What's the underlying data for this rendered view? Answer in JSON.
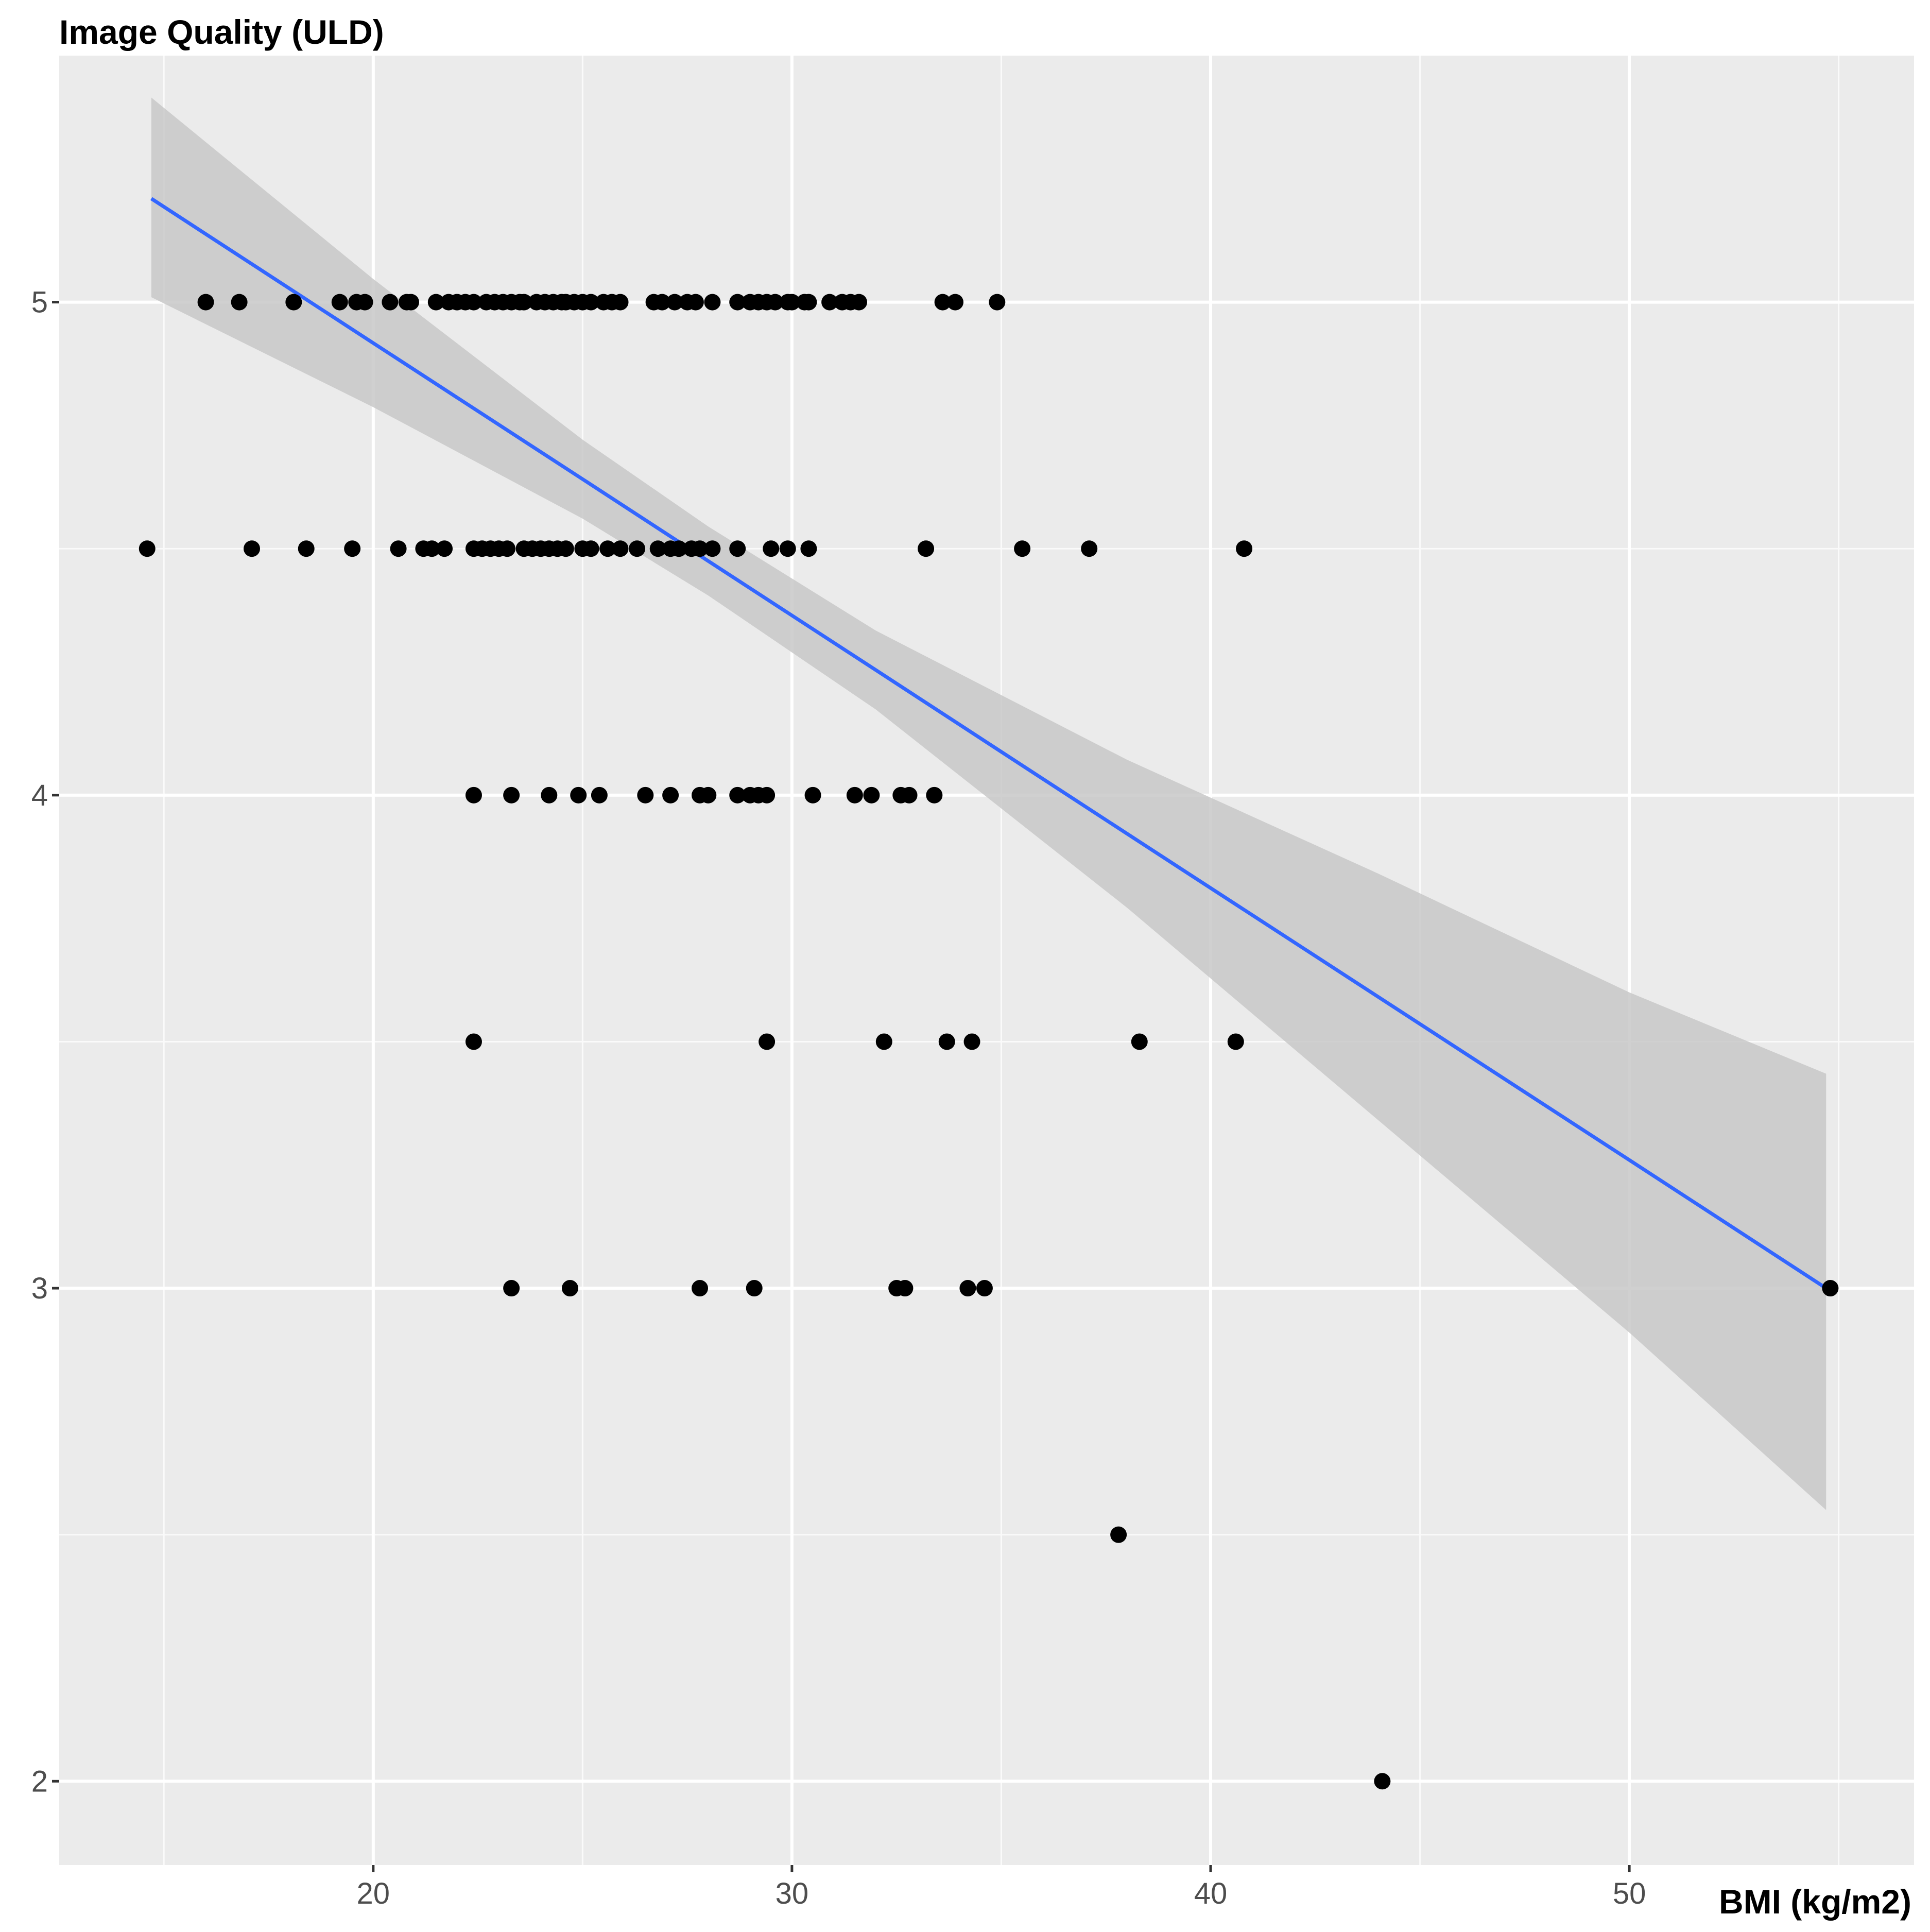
{
  "chart_data": {
    "type": "scatter",
    "y_label": "Image Quality (ULD)",
    "x_label": "BMI (kg/m2)",
    "xlim": [
      12.5,
      56.8
    ],
    "ylim": [
      1.83,
      5.5
    ],
    "xticks": [
      20,
      30,
      40,
      50
    ],
    "yticks": [
      2,
      3,
      4,
      5
    ],
    "xminor": [
      15,
      25,
      35,
      45,
      55
    ],
    "yminor": [
      2.5,
      3.5,
      4.5
    ],
    "grid": true,
    "background": "#ebebeb",
    "series": [
      {
        "color": "#000000",
        "x": [
          16.0,
          16.8,
          18.1,
          19.2,
          19.6,
          19.8,
          20.4,
          20.8,
          20.9,
          21.5,
          21.8,
          22.0,
          22.2,
          22.4,
          22.7,
          22.9,
          23.1,
          23.3,
          23.5,
          23.6,
          23.9,
          24.1,
          24.3,
          24.5,
          24.6,
          24.8,
          25.0,
          25.2,
          25.5,
          25.7,
          25.9,
          26.7,
          26.9,
          27.2,
          27.5,
          27.7,
          28.1,
          28.7,
          29.0,
          29.2,
          29.4,
          29.6,
          29.9,
          30.0,
          30.3,
          30.4,
          30.9,
          31.2,
          31.4,
          31.6,
          33.6,
          33.9,
          34.9,
          14.6,
          17.1,
          18.4,
          19.5,
          20.6,
          21.2,
          21.4,
          21.7,
          22.4,
          22.6,
          22.8,
          23.0,
          23.2,
          23.6,
          23.8,
          24.0,
          24.2,
          24.4,
          24.6,
          25.0,
          25.2,
          25.6,
          25.9,
          26.3,
          26.8,
          27.1,
          27.3,
          27.6,
          27.8,
          28.1,
          28.7,
          29.5,
          29.9,
          30.4,
          33.2,
          35.5,
          37.1,
          40.8,
          22.4,
          23.3,
          24.2,
          24.9,
          25.4,
          26.5,
          27.1,
          27.8,
          28.0,
          28.7,
          29.0,
          29.2,
          29.4,
          30.5,
          31.5,
          31.9,
          32.6,
          32.8,
          33.4,
          22.4,
          29.4,
          32.2,
          33.7,
          34.3,
          38.3,
          40.6,
          23.3,
          24.7,
          27.8,
          29.1,
          32.5,
          32.7,
          34.2,
          34.6,
          54.8,
          37.8,
          44.1
        ],
        "values": [
          5,
          5,
          5,
          5,
          5,
          5,
          5,
          5,
          5,
          5,
          5,
          5,
          5,
          5,
          5,
          5,
          5,
          5,
          5,
          5,
          5,
          5,
          5,
          5,
          5,
          5,
          5,
          5,
          5,
          5,
          5,
          5,
          5,
          5,
          5,
          5,
          5,
          5,
          5,
          5,
          5,
          5,
          5,
          5,
          5,
          5,
          5,
          5,
          5,
          5,
          5,
          5,
          5,
          4.5,
          4.5,
          4.5,
          4.5,
          4.5,
          4.5,
          4.5,
          4.5,
          4.5,
          4.5,
          4.5,
          4.5,
          4.5,
          4.5,
          4.5,
          4.5,
          4.5,
          4.5,
          4.5,
          4.5,
          4.5,
          4.5,
          4.5,
          4.5,
          4.5,
          4.5,
          4.5,
          4.5,
          4.5,
          4.5,
          4.5,
          4.5,
          4.5,
          4.5,
          4.5,
          4.5,
          4.5,
          4.5,
          4,
          4,
          4,
          4,
          4,
          4,
          4,
          4,
          4,
          4,
          4,
          4,
          4,
          4,
          4,
          4,
          4,
          4,
          4,
          3.5,
          3.5,
          3.5,
          3.5,
          3.5,
          3.5,
          3.5,
          3,
          3,
          3,
          3,
          3,
          3,
          3,
          3,
          3,
          2.5,
          2
        ]
      }
    ],
    "fit": {
      "color": "#3366ff",
      "band_color": "#c8c8c8",
      "x": [
        14.7,
        20,
        25,
        28,
        32,
        38,
        44,
        50,
        54.7
      ],
      "values": [
        5.21,
        4.917,
        4.641,
        4.475,
        4.254,
        3.922,
        3.591,
        3.26,
        3.0
      ],
      "lower": [
        5.01,
        4.787,
        4.561,
        4.405,
        4.174,
        3.772,
        3.341,
        2.91,
        2.55
      ],
      "upper": [
        5.415,
        5.047,
        4.721,
        4.545,
        4.334,
        4.072,
        3.841,
        3.6,
        3.435
      ]
    }
  }
}
